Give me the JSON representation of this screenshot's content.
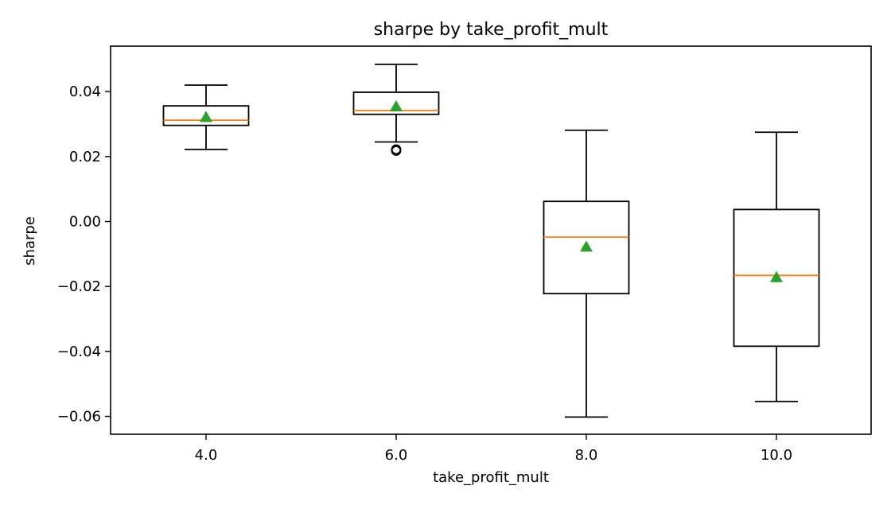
{
  "chart_data": {
    "type": "box",
    "title": "sharpe by take_profit_mult",
    "xlabel": "take_profit_mult",
    "ylabel": "sharpe",
    "ylim": [
      -0.0655,
      0.054
    ],
    "yticks": [
      0.04,
      0.02,
      0.0,
      -0.02,
      -0.04,
      -0.06
    ],
    "ytick_labels": [
      "0.04",
      "0.02",
      "0.00",
      "−0.02",
      "−0.04",
      "−0.06"
    ],
    "categories": [
      "4.0",
      "6.0",
      "8.0",
      "10.0"
    ],
    "boxes": [
      {
        "category": "4.0",
        "whisker_low": 0.0222,
        "q1": 0.0296,
        "median": 0.0312,
        "q3": 0.0356,
        "whisker_high": 0.042,
        "mean": 0.0321,
        "outliers": []
      },
      {
        "category": "6.0",
        "whisker_low": 0.0245,
        "q1": 0.033,
        "median": 0.0342,
        "q3": 0.0398,
        "whisker_high": 0.0484,
        "mean": 0.0354,
        "outliers": [
          0.0218,
          0.0222
        ]
      },
      {
        "category": "8.0",
        "whisker_low": -0.0602,
        "q1": -0.0222,
        "median": -0.0048,
        "q3": 0.0062,
        "whisker_high": 0.0281,
        "mean": -0.0078,
        "outliers": []
      },
      {
        "category": "10.0",
        "whisker_low": -0.0554,
        "q1": -0.0384,
        "median": -0.0166,
        "q3": 0.0037,
        "whisker_high": 0.0275,
        "mean": -0.0172,
        "outliers": []
      }
    ],
    "colors": {
      "box": "#000000",
      "median": "#ff7f0e",
      "mean": "#2ca02c"
    },
    "grid": false,
    "legend": "none"
  }
}
